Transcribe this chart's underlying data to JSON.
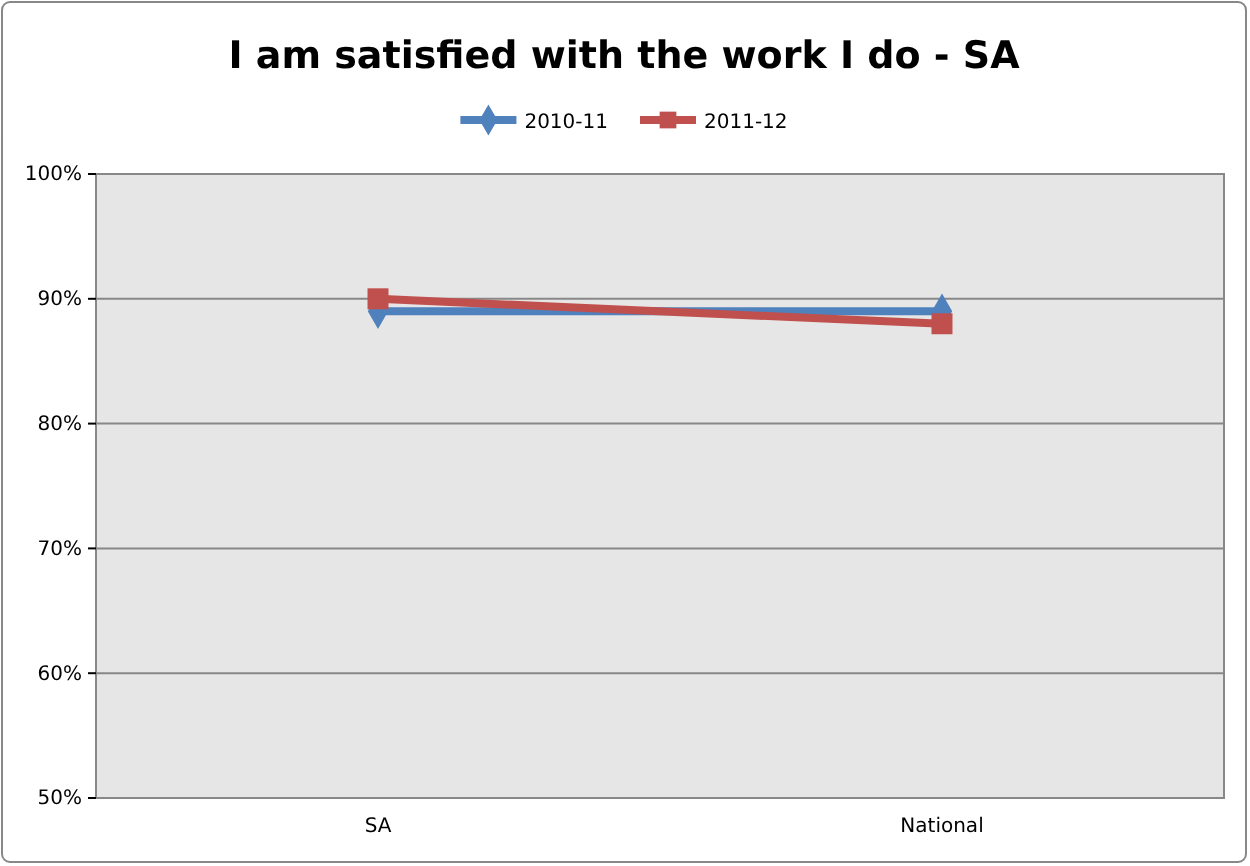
{
  "chart_data": {
    "type": "line",
    "title": "I am satisfied with the work I do - SA",
    "categories": [
      "SA",
      "National"
    ],
    "series": [
      {
        "name": "2010-11",
        "color": "#4f81bd",
        "values": [
          89,
          89
        ],
        "marker": "diamond"
      },
      {
        "name": "2011-12",
        "color": "#c0504d",
        "values": [
          90,
          88
        ],
        "marker": "square"
      }
    ],
    "ylim": [
      50,
      100
    ],
    "yticks": [
      {
        "value": 50,
        "label": "50%"
      },
      {
        "value": 60,
        "label": "60%"
      },
      {
        "value": 70,
        "label": "70%"
      },
      {
        "value": 80,
        "label": "80%"
      },
      {
        "value": 90,
        "label": "90%"
      },
      {
        "value": 100,
        "label": "100%"
      }
    ],
    "grid": "y",
    "legend": "top"
  }
}
